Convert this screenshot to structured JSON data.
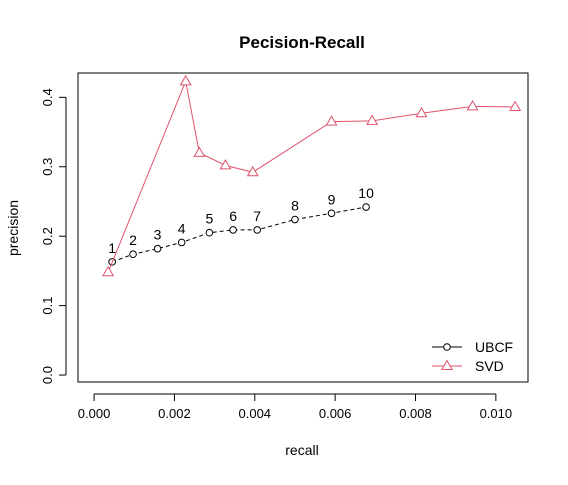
{
  "chart_data": {
    "type": "line",
    "title": "Pecision-Recall",
    "xlabel": "recall",
    "ylabel": "precision",
    "xlim": [
      -0.0004,
      0.0108
    ],
    "ylim": [
      -0.01,
      0.435
    ],
    "x_ticks": [
      0.0,
      0.002,
      0.004,
      0.006,
      0.008,
      0.01
    ],
    "x_tick_labels": [
      "0.000",
      "0.002",
      "0.004",
      "0.006",
      "0.008",
      "0.010"
    ],
    "y_ticks": [
      0.0,
      0.1,
      0.2,
      0.3,
      0.4
    ],
    "y_tick_labels": [
      "0.0",
      "0.1",
      "0.2",
      "0.3",
      "0.4"
    ],
    "grid": false,
    "legend_position": "bottom-right",
    "series": [
      {
        "name": "UBCF",
        "color": "#000000",
        "marker": "circle",
        "line_style": "dashed",
        "x": [
          0.00045,
          0.00097,
          0.00158,
          0.00218,
          0.00287,
          0.00346,
          0.00406,
          0.005,
          0.00591,
          0.00677
        ],
        "y": [
          0.163,
          0.174,
          0.182,
          0.191,
          0.205,
          0.209,
          0.209,
          0.224,
          0.233,
          0.242
        ],
        "point_labels": [
          "1",
          "2",
          "3",
          "4",
          "5",
          "6",
          "7",
          "8",
          "9",
          "10"
        ]
      },
      {
        "name": "SVD",
        "color": "#DF536B",
        "marker": "triangle",
        "line_style": "solid",
        "x": [
          0.00035,
          0.00228,
          0.00262,
          0.00327,
          0.00395,
          0.00591,
          0.00692,
          0.00815,
          0.00942,
          0.01048
        ],
        "y": [
          0.148,
          0.423,
          0.32,
          0.302,
          0.292,
          0.365,
          0.366,
          0.377,
          0.387,
          0.386
        ]
      }
    ]
  }
}
